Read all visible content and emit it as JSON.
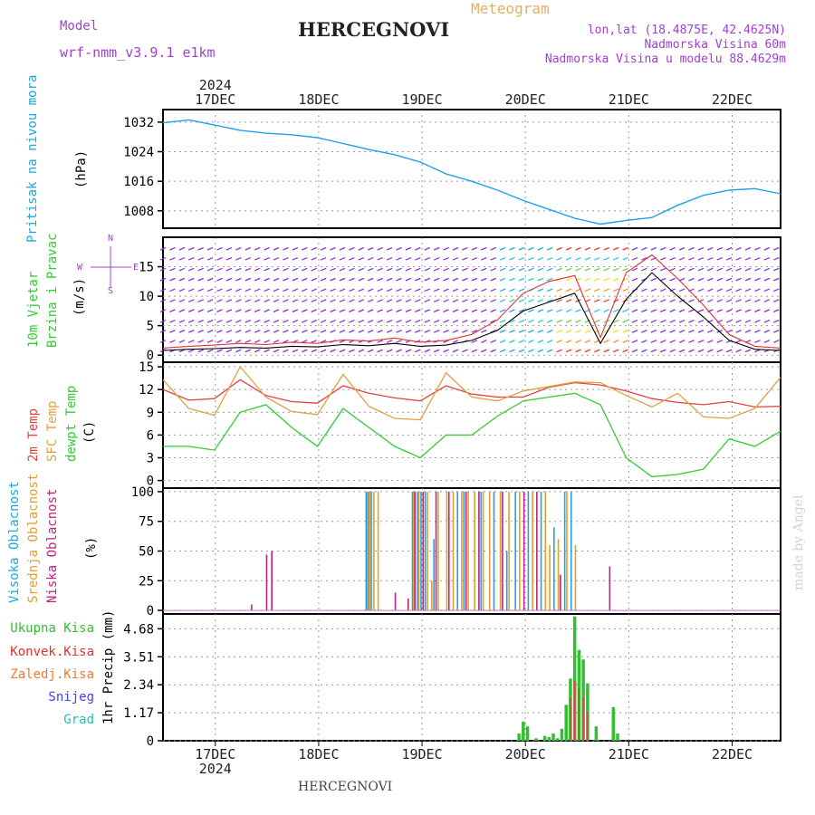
{
  "header": {
    "model_label": "Model",
    "model_name": "wrf-nmm_v3.9.1 e1km",
    "product": "Meteogram",
    "station": "HERCEGNOVI",
    "lonlat": "lon,lat (18.4875E, 42.4625N)",
    "elevation": "Nadmorska Visina 60m",
    "model_elevation": "Nadmorska Visina u modelu 88.4629m"
  },
  "footer": {
    "station": "HERCEGNOVI",
    "credit": "made by Angel"
  },
  "time_axis": {
    "year": "2024",
    "days": [
      "17DEC",
      "18DEC",
      "19DEC",
      "20DEC",
      "21DEC",
      "22DEC"
    ]
  },
  "panels": {
    "pressure": {
      "title": "Pritisak na nivou mora",
      "unit": "(hPa)"
    },
    "wind": {
      "title1": "10m Vjetar",
      "title2": "Brzina i Pravac",
      "unit": "(m/s)",
      "compass": [
        "N",
        "E",
        "S",
        "W"
      ]
    },
    "temp": {
      "label1": "2m Temp",
      "label2": "SFC Temp",
      "label3": "dewpt Temp",
      "unit": "(C)"
    },
    "cloud": {
      "label1": "Visoka Oblacnost",
      "label2": "Srednja Oblacnost",
      "label3": "Niska Oblacnost",
      "unit": "(%)"
    },
    "precip": {
      "unit": "1hr Precip (mm)",
      "legend": [
        "Ukupna Kisa",
        "Konvek.Kisa",
        "Zaledj.Kisa",
        "Snijeg",
        "Grad"
      ]
    }
  },
  "colors": {
    "pressure": "#1ea0e6",
    "wind_speed": "#000000",
    "wind_gust": "#e03030",
    "t2m": "#e64040",
    "tsfc": "#e0a040",
    "dewpt": "#30cc30",
    "cloud_high": "#2a9de0",
    "cloud_mid": "#e0a030",
    "cloud_low": "#c02080",
    "rain_total": "#30c030",
    "rain_conv": "#e04040",
    "snow": "#4040ff",
    "grad": "#20c0c0",
    "title_cyan": "#1aa8e0",
    "title_green": "#30cc30",
    "violet": "#a040d0",
    "gold": "#e0b060"
  },
  "chart_data": [
    {
      "type": "line",
      "title": "Pritisak na nivou mora",
      "ylabel": "(hPa)",
      "ylim": [
        1003.3,
        1035.4
      ],
      "yticks": [
        1008,
        1016,
        1024,
        1032
      ],
      "x_hours": [
        0,
        6,
        12,
        18,
        24,
        30,
        36,
        42,
        48,
        54,
        60,
        66,
        72,
        78,
        84,
        90,
        96,
        102,
        108,
        114,
        120,
        126,
        132,
        138,
        144
      ],
      "series": [
        {
          "values": [
            1031.8,
            1032.6,
            1031.2,
            1029.8,
            1029.0,
            1028.6,
            1027.8,
            1026.2,
            1024.6,
            1023.2,
            1021.2,
            1018.0,
            1016.0,
            1013.6,
            1010.8,
            1008.4,
            1006.0,
            1004.4,
            1005.4,
            1006.2,
            1009.5,
            1012.2,
            1013.6,
            1014.0,
            1012.6
          ]
        }
      ]
    },
    {
      "type": "line",
      "title": "10m Vjetar Brzina i Pravac",
      "ylabel": "(m/s)",
      "ylim": [
        -1.2,
        20
      ],
      "yticks": [
        0,
        5,
        10,
        15
      ],
      "x_hours": [
        0,
        6,
        12,
        18,
        24,
        30,
        36,
        42,
        48,
        54,
        60,
        66,
        72,
        78,
        84,
        90,
        96,
        102,
        108,
        114,
        120,
        126,
        132,
        138,
        144
      ],
      "series": [
        {
          "values": [
            0.8,
            1.0,
            1.1,
            1.3,
            1.2,
            1.5,
            1.4,
            1.8,
            1.6,
            2.0,
            1.5,
            1.7,
            2.5,
            4.2,
            7.5,
            9.0,
            10.5,
            2.0,
            9.5,
            14.0,
            10.0,
            6.5,
            2.5,
            1.0,
            0.8
          ]
        },
        {
          "values": [
            1.2,
            1.5,
            1.7,
            2.0,
            1.8,
            2.2,
            2.0,
            2.6,
            2.4,
            2.9,
            2.2,
            2.5,
            3.5,
            6.0,
            10.5,
            12.5,
            13.5,
            3.0,
            14.0,
            17.0,
            13.0,
            8.5,
            3.5,
            1.5,
            1.2
          ]
        }
      ]
    },
    {
      "type": "line",
      "title": "2m Temp / SFC Temp / dewpt Temp",
      "ylabel": "(C)",
      "ylim": [
        -1,
        15.6
      ],
      "yticks": [
        0,
        3,
        6,
        9,
        12,
        15
      ],
      "x_hours": [
        0,
        6,
        12,
        18,
        24,
        30,
        36,
        42,
        48,
        54,
        60,
        66,
        72,
        78,
        84,
        90,
        96,
        102,
        108,
        114,
        120,
        126,
        132,
        138,
        144
      ],
      "series": [
        {
          "name": "2m Temp",
          "values": [
            12.0,
            10.6,
            10.8,
            13.3,
            11.2,
            10.4,
            10.2,
            12.5,
            11.5,
            10.9,
            10.5,
            12.5,
            11.4,
            11.0,
            11.0,
            12.3,
            12.9,
            12.6,
            11.8,
            10.8,
            10.3,
            10.0,
            10.4,
            9.7,
            9.8
          ]
        },
        {
          "name": "SFC Temp",
          "values": [
            13.3,
            9.5,
            8.6,
            15.0,
            11.0,
            9.1,
            8.7,
            14.0,
            9.8,
            8.2,
            8.0,
            14.2,
            11.0,
            10.5,
            11.8,
            12.4,
            13.0,
            12.9,
            11.2,
            9.7,
            11.5,
            8.4,
            8.2,
            9.5,
            13.6
          ]
        },
        {
          "name": "dewpt Temp",
          "values": [
            4.5,
            4.5,
            4.0,
            9.0,
            10.0,
            7.0,
            4.5,
            9.5,
            7.0,
            4.5,
            3.0,
            6.0,
            6.0,
            8.5,
            10.5,
            11.0,
            11.5,
            10.0,
            3.0,
            0.5,
            0.8,
            1.5,
            5.5,
            4.5,
            6.5
          ]
        }
      ]
    },
    {
      "type": "bar",
      "title": "Visoka / Srednja / Niska Oblacnost",
      "ylabel": "(%)",
      "ylim": [
        -3,
        103
      ],
      "yticks": [
        0,
        25,
        50,
        75,
        100
      ],
      "series": [
        {
          "name": "Visoka Oblacnost",
          "points": [
            [
              47.2,
              100
            ],
            [
              47.8,
              100
            ],
            [
              48.4,
              100
            ],
            [
              58.0,
              100
            ],
            [
              58.5,
              100
            ],
            [
              59.2,
              100
            ],
            [
              60.0,
              100
            ],
            [
              61.0,
              100
            ],
            [
              63.0,
              60
            ],
            [
              68.5,
              100
            ],
            [
              70.0,
              100
            ],
            [
              74.0,
              100
            ],
            [
              77.0,
              100
            ],
            [
              80.0,
              50
            ],
            [
              82.0,
              100
            ],
            [
              85.0,
              100
            ],
            [
              88.0,
              100
            ],
            [
              91.0,
              70
            ],
            [
              93.5,
              100
            ],
            [
              95.0,
              100
            ]
          ]
        },
        {
          "name": "Srednja Oblacnost",
          "points": [
            [
              47.5,
              100
            ],
            [
              48.0,
              100
            ],
            [
              49.0,
              100
            ],
            [
              50.0,
              100
            ],
            [
              58.3,
              100
            ],
            [
              59.5,
              100
            ],
            [
              61.5,
              100
            ],
            [
              62.5,
              25
            ],
            [
              64.0,
              100
            ],
            [
              66.0,
              100
            ],
            [
              67.5,
              100
            ],
            [
              69.5,
              100
            ],
            [
              71.0,
              100
            ],
            [
              72.5,
              100
            ],
            [
              74.5,
              100
            ],
            [
              76.0,
              100
            ],
            [
              78.5,
              100
            ],
            [
              80.5,
              100
            ],
            [
              83.0,
              100
            ],
            [
              86.0,
              100
            ],
            [
              89.0,
              100
            ],
            [
              90.0,
              55
            ],
            [
              92.0,
              60
            ],
            [
              94.0,
              100
            ],
            [
              96.0,
              55
            ]
          ]
        },
        {
          "name": "Niska Oblacnost",
          "points": [
            [
              20.5,
              5
            ],
            [
              24.0,
              47
            ],
            [
              25.2,
              50
            ],
            [
              54.0,
              15
            ],
            [
              57.0,
              10
            ],
            [
              58.6,
              100
            ],
            [
              60.5,
              100
            ],
            [
              63.5,
              100
            ],
            [
              66.5,
              100
            ],
            [
              70.5,
              100
            ],
            [
              73.5,
              100
            ],
            [
              79.0,
              100
            ],
            [
              84.0,
              100
            ],
            [
              87.0,
              100
            ],
            [
              92.5,
              30
            ],
            [
              104.0,
              37
            ]
          ]
        }
      ]
    },
    {
      "type": "bar",
      "title": "Ukupna Kisa / Konvek.Kisa",
      "ylabel": "1hr Precip (mm)",
      "ylim": [
        0,
        5.3
      ],
      "yticks": [
        0,
        1.17,
        2.34,
        3.51,
        4.68
      ],
      "series": [
        {
          "name": "Ukupna Kisa",
          "points": [
            [
              83,
              0.3
            ],
            [
              84,
              0.8
            ],
            [
              85,
              0.6
            ],
            [
              87,
              0.1
            ],
            [
              89,
              0.2
            ],
            [
              90,
              0.15
            ],
            [
              91,
              0.3
            ],
            [
              92,
              0.1
            ],
            [
              93,
              0.5
            ],
            [
              94,
              1.5
            ],
            [
              95,
              2.6
            ],
            [
              96,
              5.2
            ],
            [
              97,
              3.8
            ],
            [
              98,
              3.4
            ],
            [
              99,
              2.4
            ],
            [
              101,
              0.6
            ],
            [
              105,
              1.4
            ],
            [
              106,
              0.3
            ]
          ]
        },
        {
          "name": "Konvek.Kisa",
          "points": [
            [
              95,
              1.8
            ],
            [
              96,
              2.5
            ],
            [
              97,
              2.2
            ],
            [
              98,
              1.8
            ],
            [
              99,
              1.2
            ]
          ]
        }
      ]
    }
  ]
}
